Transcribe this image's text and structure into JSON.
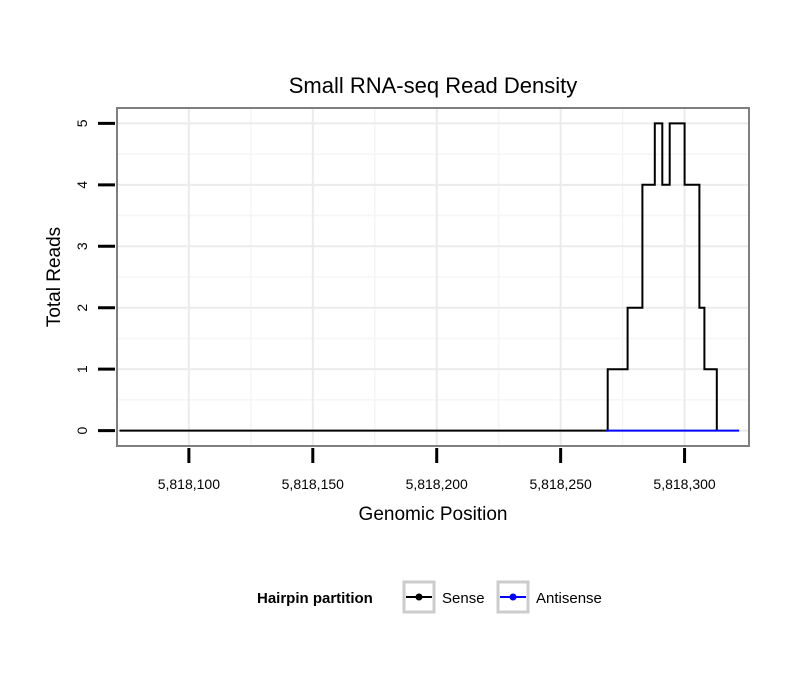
{
  "chart_data": {
    "type": "line",
    "title": "Small RNA-seq Read Density",
    "xlabel": "Genomic Position",
    "ylabel": "Total Reads",
    "xlim": [
      5818071,
      5818326
    ],
    "ylim": [
      -0.25,
      5.25
    ],
    "x_ticks": [
      5818100,
      5818150,
      5818200,
      5818250,
      5818300
    ],
    "x_tick_labels": [
      "5,818,100",
      "5,818,150",
      "5,818,200",
      "5,818,250",
      "5,818,300"
    ],
    "y_ticks": [
      0,
      1,
      2,
      3,
      4,
      5
    ],
    "y_tick_labels": [
      "0",
      "1",
      "2",
      "3",
      "4",
      "5"
    ],
    "grid": true,
    "legend": {
      "title": "Hairpin partition",
      "position": "bottom",
      "entries": [
        "Sense",
        "Antisense"
      ]
    },
    "series": [
      {
        "name": "Sense",
        "color": "#000000",
        "step": true,
        "points": [
          [
            5818072,
            0
          ],
          [
            5818268,
            0
          ],
          [
            5818269,
            1
          ],
          [
            5818276,
            1
          ],
          [
            5818277,
            2
          ],
          [
            5818282,
            2
          ],
          [
            5818283,
            4
          ],
          [
            5818287,
            4
          ],
          [
            5818288,
            5
          ],
          [
            5818290,
            5
          ],
          [
            5818291,
            4
          ],
          [
            5818293,
            4
          ],
          [
            5818294,
            5
          ],
          [
            5818299,
            5
          ],
          [
            5818300,
            4
          ],
          [
            5818305,
            4
          ],
          [
            5818306,
            2
          ],
          [
            5818307,
            2
          ],
          [
            5818308,
            1
          ],
          [
            5818312,
            1
          ],
          [
            5818313,
            0
          ]
        ]
      },
      {
        "name": "Antisense",
        "color": "#0000ff",
        "step": true,
        "points": [
          [
            5818268,
            0
          ],
          [
            5818322,
            0
          ]
        ]
      }
    ]
  }
}
